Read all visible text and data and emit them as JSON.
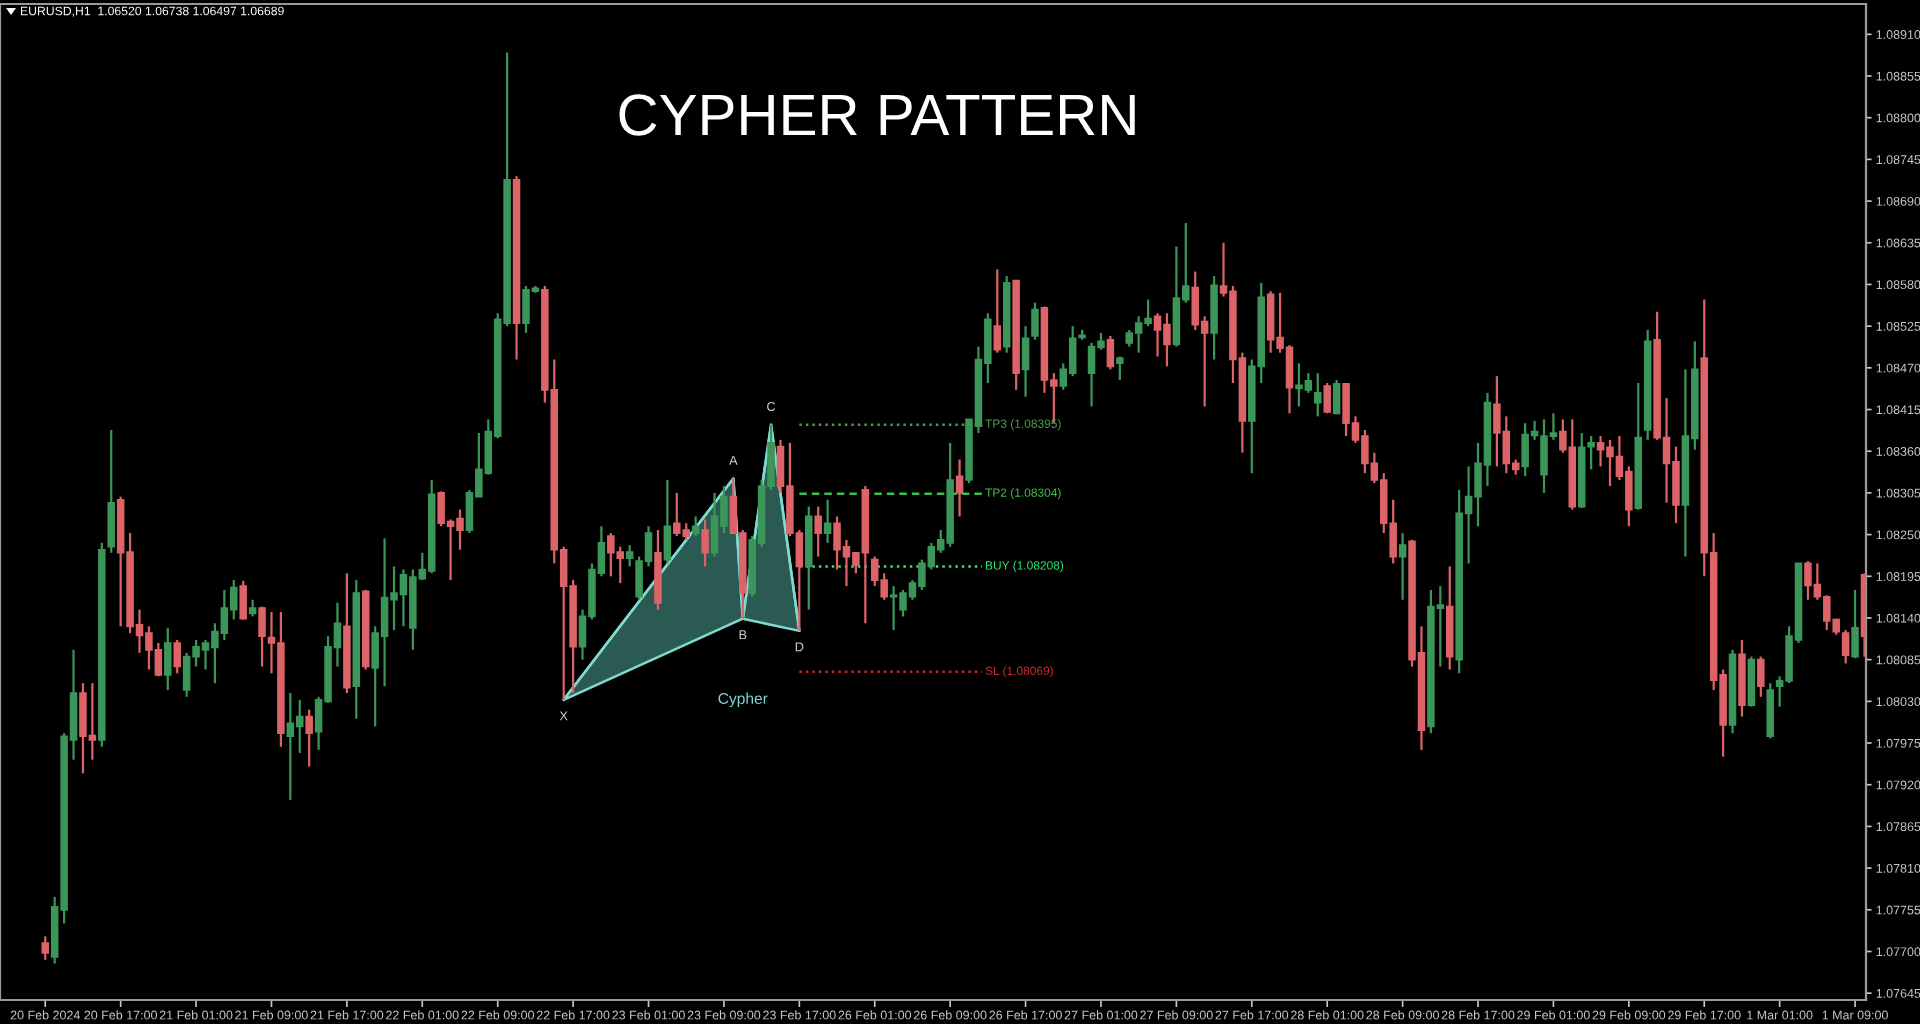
{
  "chart_data": {
    "type": "candlestick",
    "title": "CYPHER PATTERN",
    "annotations": [
      "EURUSD,H1  1.06520 1.06738 1.06497 1.06689"
    ],
    "categories": [
      "20 Feb 2024",
      null,
      null,
      null,
      null,
      null,
      null,
      null,
      "20 Feb 17:00",
      null,
      null,
      null,
      null,
      null,
      null,
      null,
      "21 Feb 01:00",
      null,
      null,
      null,
      null,
      null,
      null,
      null,
      "21 Feb 09:00",
      null,
      null,
      null,
      null,
      null,
      null,
      null,
      "21 Feb 17:00",
      null,
      null,
      null,
      null,
      null,
      null,
      null,
      "22 Feb 01:00",
      null,
      null,
      null,
      null,
      null,
      null,
      null,
      "22 Feb 09:00",
      null,
      null,
      null,
      null,
      null,
      null,
      null,
      "22 Feb 17:00",
      null,
      null,
      null,
      null,
      null,
      null,
      null,
      "23 Feb 01:00",
      null,
      null,
      null,
      null,
      null,
      null,
      null,
      "23 Feb 09:00",
      null,
      null,
      null,
      null,
      null,
      null,
      null,
      "23 Feb 17:00",
      null,
      null,
      null,
      null,
      null,
      null,
      null,
      "26 Feb 01:00",
      null,
      null,
      null,
      null,
      null,
      null,
      null,
      "26 Feb 09:00",
      null,
      null,
      null,
      null,
      null,
      null,
      null,
      "26 Feb 17:00",
      null,
      null,
      null,
      null,
      null,
      null,
      null,
      "27 Feb 01:00",
      null,
      null,
      null,
      null,
      null,
      null,
      null,
      "27 Feb 09:00",
      null,
      null,
      null,
      null,
      null,
      null,
      null,
      "27 Feb 17:00",
      null,
      null,
      null,
      null,
      null,
      null,
      null,
      "28 Feb 01:00",
      null,
      null,
      null,
      null,
      null,
      null,
      null,
      "28 Feb 09:00",
      null,
      null,
      null,
      null,
      null,
      null,
      null,
      "28 Feb 17:00",
      null,
      null,
      null,
      null,
      null,
      null,
      null,
      "29 Feb 01:00",
      null,
      null,
      null,
      null,
      null,
      null,
      null,
      "29 Feb 09:00",
      null,
      null,
      null,
      null,
      null,
      null,
      null,
      "29 Feb 17:00",
      null,
      null,
      null,
      null,
      null,
      null,
      null,
      "1 Mar 01:00",
      null,
      null,
      null,
      null,
      null,
      null,
      null,
      "1 Mar 09:00",
      null
    ],
    "ohlc": [
      [
        1.07711,
        1.0772,
        1.07689,
        1.07698
      ],
      [
        1.07693,
        1.07772,
        1.07684,
        1.07759
      ],
      [
        1.07755,
        1.07988,
        1.07737,
        1.07984
      ],
      [
        1.07979,
        1.08098,
        1.07953,
        1.08041
      ],
      [
        1.08041,
        1.08054,
        1.07935,
        1.07984
      ],
      [
        1.07985,
        1.08054,
        1.07953,
        1.07979
      ],
      [
        1.07979,
        1.08239,
        1.0797,
        1.0823
      ],
      [
        1.08234,
        1.08388,
        1.08226,
        1.08292
      ],
      [
        1.08296,
        1.083,
        1.08129,
        1.08226
      ],
      [
        1.08227,
        1.08252,
        1.0812,
        1.08129
      ],
      [
        1.08131,
        1.08151,
        1.08094,
        1.08117
      ],
      [
        1.0812,
        1.08129,
        1.08072,
        1.08098
      ],
      [
        1.08098,
        1.08107,
        1.08063,
        1.08065
      ],
      [
        1.08065,
        1.08127,
        1.08045,
        1.08107
      ],
      [
        1.08107,
        1.08111,
        1.08067,
        1.08076
      ],
      [
        1.08045,
        1.08094,
        1.08036,
        1.08089
      ],
      [
        1.08089,
        1.08111,
        1.08076,
        1.08102
      ],
      [
        1.08098,
        1.08111,
        1.08072,
        1.08107
      ],
      [
        1.08101,
        1.08133,
        1.08054,
        1.08122
      ],
      [
        1.0812,
        1.08177,
        1.08111,
        1.08153
      ],
      [
        1.08151,
        1.0819,
        1.08138,
        1.0818
      ],
      [
        1.08182,
        1.08189,
        1.08138,
        1.08139
      ],
      [
        1.08146,
        1.08164,
        1.08142,
        1.08153
      ],
      [
        1.08153,
        1.08155,
        1.08076,
        1.08116
      ],
      [
        1.08114,
        1.08148,
        1.08067,
        1.08107
      ],
      [
        1.08107,
        1.08148,
        1.0797,
        1.07988
      ],
      [
        1.07984,
        1.08041,
        1.079,
        1.08001
      ],
      [
        1.07997,
        1.08032,
        1.07962,
        1.0801
      ],
      [
        1.0801,
        1.08019,
        1.07944,
        1.07988
      ],
      [
        1.0799,
        1.08036,
        1.07966,
        1.08032
      ],
      [
        1.0803,
        1.08116,
        1.08028,
        1.08102
      ],
      [
        1.08101,
        1.0816,
        1.08076,
        1.08133
      ],
      [
        1.08129,
        1.08199,
        1.08041,
        1.08048
      ],
      [
        1.0805,
        1.0819,
        1.08007,
        1.08173
      ],
      [
        1.08175,
        1.08177,
        1.08072,
        1.08076
      ],
      [
        1.08074,
        1.08129,
        1.07997,
        1.0812
      ],
      [
        1.08116,
        1.08245,
        1.0805,
        1.08167
      ],
      [
        1.08164,
        1.08208,
        1.08124,
        1.08173
      ],
      [
        1.08171,
        1.08204,
        1.08129,
        1.08197
      ],
      [
        1.08127,
        1.08204,
        1.08098,
        1.08194
      ],
      [
        1.08192,
        1.08226,
        1.0819,
        1.08204
      ],
      [
        1.08202,
        1.08322,
        1.08199,
        1.08303
      ],
      [
        1.08305,
        1.08307,
        1.08261,
        1.08265
      ],
      [
        1.08267,
        1.0827,
        1.0819,
        1.08261
      ],
      [
        1.08271,
        1.08283,
        1.0823,
        1.08256
      ],
      [
        1.08256,
        1.08309,
        1.08252,
        1.08305
      ],
      [
        1.083,
        1.08384,
        1.083,
        1.08336
      ],
      [
        1.08331,
        1.08402,
        1.08329,
        1.08386
      ],
      [
        1.0838,
        1.08542,
        1.08377,
        1.08534
      ],
      [
        1.08529,
        1.08886,
        1.08525,
        1.08718
      ],
      [
        1.08718,
        1.08723,
        1.08481,
        1.08529
      ],
      [
        1.08529,
        1.08578,
        1.08516,
        1.08573
      ],
      [
        1.08571,
        1.08578,
        1.08569,
        1.08575
      ],
      [
        1.08573,
        1.08578,
        1.08424,
        1.08441
      ],
      [
        1.08441,
        1.08481,
        1.08212,
        1.0823
      ],
      [
        1.0823,
        1.08234,
        1.08032,
        1.08182
      ],
      [
        1.08182,
        1.0819,
        1.08041,
        1.08102
      ],
      [
        1.08102,
        1.08151,
        1.08085,
        1.08142
      ],
      [
        1.08142,
        1.08212,
        1.08138,
        1.08204
      ],
      [
        1.08199,
        1.08261,
        1.08195,
        1.08239
      ],
      [
        1.08248,
        1.08252,
        1.08195,
        1.08226
      ],
      [
        1.08227,
        1.08234,
        1.08186,
        1.08219
      ],
      [
        1.08219,
        1.08236,
        1.08208,
        1.08227
      ],
      [
        1.08168,
        1.08221,
        1.08164,
        1.08215
      ],
      [
        1.08215,
        1.08261,
        1.08208,
        1.08252
      ],
      [
        1.08226,
        1.08256,
        1.08151,
        1.0816
      ],
      [
        1.08217,
        1.08322,
        1.08212,
        1.08261
      ],
      [
        1.08265,
        1.08305,
        1.08248,
        1.08252
      ],
      [
        1.08256,
        1.08265,
        1.08243,
        1.08248
      ],
      [
        1.08252,
        1.08274,
        1.08248,
        1.08261
      ],
      [
        1.08256,
        1.0827,
        1.08208,
        1.08226
      ],
      [
        1.08226,
        1.08305,
        1.08221,
        1.08274
      ],
      [
        1.08261,
        1.08314,
        1.08252,
        1.083
      ],
      [
        1.083,
        1.08324,
        1.08252,
        1.08252
      ],
      [
        1.08252,
        1.08256,
        1.08139,
        1.08173
      ],
      [
        1.08173,
        1.08248,
        1.08168,
        1.08243
      ],
      [
        1.08239,
        1.08322,
        1.08234,
        1.08314
      ],
      [
        1.08314,
        1.08395,
        1.08309,
        1.08371
      ],
      [
        1.08366,
        1.08375,
        1.08305,
        1.08314
      ],
      [
        1.08314,
        1.08371,
        1.08248,
        1.08252
      ],
      [
        1.08252,
        1.08256,
        1.08123,
        1.08208
      ],
      [
        1.08208,
        1.08287,
        1.08151,
        1.08274
      ],
      [
        1.08274,
        1.08287,
        1.08221,
        1.08252
      ],
      [
        1.08252,
        1.08296,
        1.08239,
        1.08265
      ],
      [
        1.08265,
        1.08274,
        1.08204,
        1.0823
      ],
      [
        1.08234,
        1.08243,
        1.08182,
        1.08221
      ],
      [
        1.08226,
        1.08227,
        1.08199,
        1.0821
      ],
      [
        1.08309,
        1.08314,
        1.08133,
        1.08226
      ],
      [
        1.08217,
        1.08221,
        1.08182,
        1.0819
      ],
      [
        1.0819,
        1.08199,
        1.08164,
        1.08168
      ],
      [
        1.08168,
        1.08182,
        1.08124,
        1.0817
      ],
      [
        1.08151,
        1.08177,
        1.08142,
        1.08173
      ],
      [
        1.08168,
        1.0819,
        1.08164,
        1.08186
      ],
      [
        1.08182,
        1.08217,
        1.08177,
        1.08212
      ],
      [
        1.08208,
        1.08239,
        1.08204,
        1.08234
      ],
      [
        1.0823,
        1.08256,
        1.08226,
        1.08243
      ],
      [
        1.08239,
        1.08371,
        1.08234,
        1.08322
      ],
      [
        1.08327,
        1.08349,
        1.08274,
        1.08305
      ],
      [
        1.08322,
        1.08402,
        1.08318,
        1.08402
      ],
      [
        1.08393,
        1.08498,
        1.08384,
        1.08481
      ],
      [
        1.08476,
        1.08542,
        1.0845,
        1.08534
      ],
      [
        1.08525,
        1.086,
        1.0849,
        1.08494
      ],
      [
        1.08498,
        1.08591,
        1.0849,
        1.08582
      ],
      [
        1.08585,
        1.08586,
        1.08441,
        1.08463
      ],
      [
        1.08468,
        1.08525,
        1.08432,
        1.08509
      ],
      [
        1.08512,
        1.08556,
        1.08507,
        1.08547
      ],
      [
        1.08549,
        1.08551,
        1.08437,
        1.08454
      ],
      [
        1.08454,
        1.08463,
        1.08397,
        1.08446
      ],
      [
        1.08446,
        1.08476,
        1.08441,
        1.08468
      ],
      [
        1.08463,
        1.08525,
        1.08459,
        1.08509
      ],
      [
        1.0851,
        1.0852,
        1.08507,
        1.08513
      ],
      [
        1.08463,
        1.08503,
        1.08419,
        1.08498
      ],
      [
        1.08497,
        1.08516,
        1.08494,
        1.08505
      ],
      [
        1.08507,
        1.08512,
        1.08468,
        1.08472
      ],
      [
        1.08476,
        1.08485,
        1.08454,
        1.08483
      ],
      [
        1.08503,
        1.0852,
        1.08498,
        1.08516
      ],
      [
        1.08516,
        1.08538,
        1.0849,
        1.08529
      ],
      [
        1.08529,
        1.0856,
        1.08525,
        1.08535
      ],
      [
        1.08538,
        1.08542,
        1.08485,
        1.0852
      ],
      [
        1.08527,
        1.08542,
        1.08472,
        1.08501
      ],
      [
        1.08501,
        1.0863,
        1.08498,
        1.08562
      ],
      [
        1.0856,
        1.08661,
        1.08556,
        1.08578
      ],
      [
        1.08576,
        1.08597,
        1.0852,
        1.08527
      ],
      [
        1.08531,
        1.08538,
        1.08419,
        1.08516
      ],
      [
        1.08516,
        1.08591,
        1.08481,
        1.08579
      ],
      [
        1.08578,
        1.08635,
        1.08564,
        1.08569
      ],
      [
        1.08571,
        1.08578,
        1.0845,
        1.08481
      ],
      [
        1.08483,
        1.0849,
        1.08358,
        1.084
      ],
      [
        1.084,
        1.08481,
        1.08331,
        1.08472
      ],
      [
        1.08472,
        1.08582,
        1.0845,
        1.08563
      ],
      [
        1.08567,
        1.08571,
        1.0849,
        1.08507
      ],
      [
        1.0851,
        1.08569,
        1.0849,
        1.08496
      ],
      [
        1.08497,
        1.085,
        1.0841,
        1.08444
      ],
      [
        1.08443,
        1.08476,
        1.08419,
        1.08447
      ],
      [
        1.08441,
        1.08463,
        1.08437,
        1.08453
      ],
      [
        1.08424,
        1.08463,
        1.08406,
        1.08437
      ],
      [
        1.08446,
        1.0845,
        1.0841,
        1.08412
      ],
      [
        1.0841,
        1.08454,
        1.08409,
        1.08449
      ],
      [
        1.08449,
        1.0845,
        1.0838,
        1.08397
      ],
      [
        1.08397,
        1.08406,
        1.08371,
        1.08375
      ],
      [
        1.0838,
        1.08388,
        1.08331,
        1.08344
      ],
      [
        1.08344,
        1.08358,
        1.08318,
        1.08322
      ],
      [
        1.08322,
        1.08331,
        1.08252,
        1.08265
      ],
      [
        1.08265,
        1.08296,
        1.08212,
        1.08221
      ],
      [
        1.08221,
        1.08252,
        1.08164,
        1.08236
      ],
      [
        1.08241,
        1.08243,
        1.08076,
        1.08085
      ],
      [
        1.08094,
        1.08129,
        1.07966,
        1.07992
      ],
      [
        1.07997,
        1.08177,
        1.07988,
        1.08155
      ],
      [
        1.08153,
        1.08182,
        1.08076,
        1.08157
      ],
      [
        1.08155,
        1.08208,
        1.08072,
        1.08089
      ],
      [
        1.08085,
        1.08309,
        1.08067,
        1.08278
      ],
      [
        1.08278,
        1.0834,
        1.08212,
        1.083
      ],
      [
        1.083,
        1.08371,
        1.08261,
        1.08344
      ],
      [
        1.08342,
        1.08437,
        1.08314,
        1.08424
      ],
      [
        1.08422,
        1.08459,
        1.0834,
        1.08384
      ],
      [
        1.08386,
        1.08406,
        1.08331,
        1.08344
      ],
      [
        1.08344,
        1.08349,
        1.08329,
        1.08336
      ],
      [
        1.0834,
        1.08397,
        1.08327,
        1.08382
      ],
      [
        1.08381,
        1.084,
        1.08375,
        1.08386
      ],
      [
        1.08329,
        1.08402,
        1.08305,
        1.0838
      ],
      [
        1.0838,
        1.0841,
        1.08375,
        1.08384
      ],
      [
        1.08386,
        1.08402,
        1.08358,
        1.08362
      ],
      [
        1.08365,
        1.08402,
        1.08283,
        1.08287
      ],
      [
        1.08287,
        1.08384,
        1.08285,
        1.08365
      ],
      [
        1.08366,
        1.0838,
        1.08336,
        1.08371
      ],
      [
        1.08371,
        1.0838,
        1.0834,
        1.08362
      ],
      [
        1.08365,
        1.08375,
        1.08314,
        1.08353
      ],
      [
        1.08353,
        1.0838,
        1.08322,
        1.08327
      ],
      [
        1.08333,
        1.0834,
        1.08261,
        1.08283
      ],
      [
        1.08285,
        1.0845,
        1.08283,
        1.08378
      ],
      [
        1.08388,
        1.0852,
        1.08375,
        1.08505
      ],
      [
        1.08507,
        1.08544,
        1.08375,
        1.08378
      ],
      [
        1.08378,
        1.0843,
        1.08292,
        1.08344
      ],
      [
        1.08346,
        1.08366,
        1.08265,
        1.08289
      ],
      [
        1.08289,
        1.08468,
        1.08221,
        1.0838
      ],
      [
        1.08377,
        1.08505,
        1.08362,
        1.08468
      ],
      [
        1.08483,
        1.0856,
        1.08195,
        1.08226
      ],
      [
        1.08226,
        1.08252,
        1.08045,
        1.08058
      ],
      [
        1.08065,
        1.08072,
        1.07957,
        1.07999
      ],
      [
        1.07999,
        1.08098,
        1.07988,
        1.08092
      ],
      [
        1.08092,
        1.08111,
        1.0801,
        1.08025
      ],
      [
        1.08025,
        1.08089,
        1.08023,
        1.08085
      ],
      [
        1.08085,
        1.08089,
        1.08036,
        1.0805
      ],
      [
        1.07984,
        1.08054,
        1.07981,
        1.08045
      ],
      [
        1.0805,
        1.08063,
        1.08023,
        1.08057
      ],
      [
        1.08057,
        1.08129,
        1.08054,
        1.08116
      ],
      [
        1.08111,
        1.08212,
        1.08107,
        1.08212
      ],
      [
        1.08212,
        1.08215,
        1.08164,
        1.08183
      ],
      [
        1.08184,
        1.08212,
        1.08164,
        1.08168
      ],
      [
        1.08168,
        1.0817,
        1.08124,
        1.08136
      ],
      [
        1.08138,
        1.08139,
        1.08118,
        1.08122
      ],
      [
        1.0812,
        1.08124,
        1.0808,
        1.08091
      ],
      [
        1.08089,
        1.08177,
        1.08087,
        1.08127
      ],
      [
        1.08197,
        1.08199,
        1.08089,
        1.08116
      ]
    ],
    "colors": [
      "#dc6469",
      "#3c965a",
      "#3c965a",
      "#3c965a",
      "#dc6469",
      "#dc6469",
      "#3c965a",
      "#3c965a",
      "#dc6469",
      "#dc6469",
      "#dc6469",
      "#dc6469",
      "#dc6469",
      "#3c965a",
      "#dc6469",
      "#3c965a",
      "#3c965a",
      "#3c965a",
      "#3c965a",
      "#3c965a",
      "#3c965a",
      "#dc6469",
      "#3c965a",
      "#dc6469",
      "#dc6469",
      "#dc6469",
      "#3c965a",
      "#3c965a",
      "#dc6469",
      "#3c965a",
      "#3c965a",
      "#3c965a",
      "#dc6469",
      "#3c965a",
      "#dc6469",
      "#3c965a",
      "#3c965a",
      "#3c965a",
      "#3c965a",
      "#3c965a",
      "#3c965a",
      "#3c965a",
      "#dc6469",
      "#dc6469",
      "#dc6469",
      "#3c965a",
      "#3c965a",
      "#3c965a",
      "#3c965a",
      "#3c965a",
      "#dc6469",
      "#3c965a",
      "#3c965a",
      "#dc6469",
      "#dc6469",
      "#dc6469",
      "#dc6469",
      "#3c965a",
      "#3c965a",
      "#3c965a",
      "#dc6469",
      "#dc6469",
      "#3c965a",
      "#3c965a",
      "#3c965a",
      "#dc6469",
      "#3c965a",
      "#dc6469",
      "#dc6469",
      "#3c965a",
      "#dc6469",
      "#3c965a",
      "#3c965a",
      "#dc6469",
      "#dc6469",
      "#3c965a",
      "#3c965a",
      "#3c965a",
      "#dc6469",
      "#dc6469",
      "#dc6469",
      "#3c965a",
      "#dc6469",
      "#3c965a",
      "#dc6469",
      "#dc6469",
      "#dc6469",
      "#dc6469",
      "#dc6469",
      "#dc6469",
      "#3c965a",
      "#3c965a",
      "#3c965a",
      "#3c965a",
      "#3c965a",
      "#3c965a",
      "#3c965a",
      "#dc6469",
      "#3c965a",
      "#3c965a",
      "#3c965a",
      "#dc6469",
      "#3c965a",
      "#dc6469",
      "#3c965a",
      "#3c965a",
      "#dc6469",
      "#dc6469",
      "#3c965a",
      "#3c965a",
      "#3c965a",
      "#3c965a",
      "#3c965a",
      "#dc6469",
      "#3c965a",
      "#3c965a",
      "#3c965a",
      "#3c965a",
      "#dc6469",
      "#dc6469",
      "#3c965a",
      "#3c965a",
      "#dc6469",
      "#dc6469",
      "#3c965a",
      "#dc6469",
      "#dc6469",
      "#dc6469",
      "#3c965a",
      "#3c965a",
      "#dc6469",
      "#dc6469",
      "#dc6469",
      "#3c965a",
      "#3c965a",
      "#3c965a",
      "#dc6469",
      "#3c965a",
      "#dc6469",
      "#dc6469",
      "#dc6469",
      "#dc6469",
      "#dc6469",
      "#dc6469",
      "#3c965a",
      "#dc6469",
      "#dc6469",
      "#3c965a",
      "#3c965a",
      "#dc6469",
      "#3c965a",
      "#3c965a",
      "#3c965a",
      "#3c965a",
      "#dc6469",
      "#dc6469",
      "#dc6469",
      "#3c965a",
      "#3c965a",
      "#3c965a",
      "#3c965a",
      "#dc6469",
      "#dc6469",
      "#3c965a",
      "#3c965a",
      "#dc6469",
      "#dc6469",
      "#dc6469",
      "#dc6469",
      "#3c965a",
      "#3c965a",
      "#dc6469",
      "#dc6469",
      "#dc6469",
      "#3c965a",
      "#3c965a",
      "#dc6469",
      "#dc6469",
      "#dc6469",
      "#3c965a",
      "#dc6469",
      "#3c965a",
      "#dc6469",
      "#3c965a",
      "#3c965a",
      "#3c965a",
      "#3c965a",
      "#dc6469",
      "#dc6469",
      "#dc6469",
      "#dc6469",
      "#dc6469",
      "#3c965a",
      "#dc6469"
    ],
    "series": [
      {
        "type": "line",
        "name": "Cypher",
        "color": "#7fdad0",
        "values": [
          null,
          null,
          null,
          null,
          null,
          null,
          null,
          null,
          null,
          null,
          null,
          null,
          null,
          null,
          null,
          null,
          null,
          null,
          null,
          null,
          null,
          null,
          null,
          null,
          null,
          null,
          null,
          null,
          null,
          null,
          null,
          null,
          null,
          null,
          null,
          null,
          null,
          null,
          null,
          null,
          null,
          null,
          null,
          null,
          null,
          null,
          null,
          null,
          null,
          null,
          null,
          null,
          null,
          null,
          null,
          1.08032,
          null,
          null,
          null,
          null,
          null,
          null,
          null,
          null,
          null,
          null,
          null,
          null,
          null,
          null,
          null,
          null,
          null,
          1.08324,
          1.08139,
          null,
          null,
          1.08395,
          null,
          null,
          1.08123,
          null,
          null,
          null,
          null,
          null,
          null,
          null,
          null,
          null,
          null,
          null,
          null,
          null,
          null,
          null,
          null,
          null,
          null,
          null,
          null,
          null,
          null,
          null,
          null,
          null,
          null,
          null,
          null,
          null,
          null,
          null,
          null,
          null,
          null,
          null,
          null,
          null,
          null,
          null,
          null,
          null,
          null,
          null,
          null,
          null,
          null,
          null,
          null,
          null,
          null,
          null,
          null,
          null,
          null,
          null,
          null,
          null,
          null,
          null,
          null,
          null,
          null,
          null,
          null,
          null,
          null,
          null,
          null,
          null,
          null,
          null,
          null,
          null,
          null,
          null,
          null,
          null,
          null,
          null,
          null,
          null,
          null,
          null,
          null,
          null,
          null,
          null,
          null,
          null,
          null,
          null,
          null,
          null,
          null,
          null,
          null,
          null,
          null,
          null,
          null,
          null,
          null,
          null,
          null,
          null,
          null,
          null,
          null,
          null,
          null,
          null,
          null,
          null
        ],
        "value_labels": [
          null,
          null,
          null,
          null,
          null,
          null,
          null,
          null,
          null,
          null,
          null,
          null,
          null,
          null,
          null,
          null,
          null,
          null,
          null,
          null,
          null,
          null,
          null,
          null,
          null,
          null,
          null,
          null,
          null,
          null,
          null,
          null,
          null,
          null,
          null,
          null,
          null,
          null,
          null,
          null,
          null,
          null,
          null,
          null,
          null,
          null,
          null,
          null,
          null,
          null,
          null,
          null,
          null,
          null,
          null,
          "X",
          null,
          null,
          null,
          null,
          null,
          null,
          null,
          null,
          null,
          null,
          null,
          null,
          null,
          null,
          null,
          null,
          null,
          "A",
          "B",
          null,
          null,
          "C",
          null,
          null,
          "D",
          null,
          null,
          null,
          null,
          null,
          null,
          null,
          null,
          null,
          null,
          null,
          null,
          null,
          null,
          null,
          null,
          null,
          null,
          null,
          null,
          null,
          null,
          null,
          null,
          null,
          null,
          null,
          null,
          null,
          null,
          null,
          null,
          null,
          null,
          null,
          null,
          null,
          null,
          null,
          null,
          null,
          null,
          null,
          null,
          null,
          null,
          null,
          null,
          null,
          null,
          null,
          null,
          null,
          null,
          null,
          null,
          null,
          null,
          null,
          null,
          null,
          null,
          null,
          null,
          null,
          null,
          null,
          null,
          null,
          null,
          null,
          null,
          null,
          null,
          null,
          null,
          null,
          null,
          null,
          null,
          null,
          null,
          null,
          null,
          null,
          null,
          null,
          null,
          null,
          null,
          null,
          null,
          null,
          null,
          null,
          null,
          null,
          null,
          null,
          null,
          null,
          null,
          null,
          null,
          null,
          null,
          null,
          null,
          null,
          null,
          null,
          null,
          null
        ]
      }
    ],
    "ref_lines": [
      {
        "axis": "y",
        "value": 1.08395,
        "label": "TP3 (1.08395)",
        "color": "#4e9a4e",
        "line_style": "dotted"
      },
      {
        "axis": "y",
        "value": 1.08304,
        "label": "TP2 (1.08304)",
        "color": "#3cbf4c",
        "line_style": "dashed"
      },
      {
        "axis": "y",
        "value": 1.08208,
        "label": "BUY (1.08208)",
        "color": "#2ee870",
        "line_style": "dotted"
      },
      {
        "axis": "y",
        "value": 1.08069,
        "label": "SL (1.08069)",
        "color": "#c8282d",
        "line_style": "dotted"
      }
    ],
    "ylim": [
      1.07636,
      1.0895
    ],
    "yticks": [
      1.07645,
      {
        "value": 1.077,
        "label": "1.07700"
      },
      1.07755,
      {
        "value": 1.0781,
        "label": "1.07810"
      },
      1.07865,
      {
        "value": 1.0792,
        "label": "1.07920"
      },
      1.07975,
      {
        "value": 1.0803,
        "label": "1.08030"
      },
      1.08085,
      {
        "value": 1.0814,
        "label": "1.08140"
      },
      1.08195,
      {
        "value": 1.0825,
        "label": "1.08250"
      },
      1.08305,
      {
        "value": 1.0836,
        "label": "1.08360"
      },
      1.08415,
      {
        "value": 1.0847,
        "label": "1.08470"
      },
      1.08525,
      {
        "value": 1.0858,
        "label": "1.08580"
      },
      1.08635,
      {
        "value": 1.0869,
        "label": "1.08690"
      },
      1.08745,
      {
        "value": 1.088,
        "label": "1.08800"
      },
      1.08855,
      {
        "value": 1.0891,
        "label": "1.08910"
      }
    ],
    "grid": false
  }
}
